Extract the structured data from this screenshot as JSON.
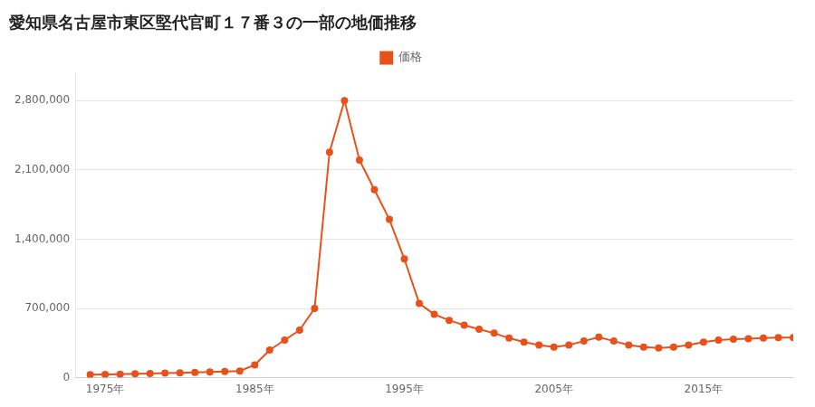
{
  "chart_data": {
    "type": "line",
    "title": "愛知県名古屋市東区堅代官町１７番３の一部の地価推移",
    "x": [
      1974,
      1975,
      1976,
      1977,
      1978,
      1979,
      1980,
      1981,
      1982,
      1983,
      1984,
      1985,
      1986,
      1987,
      1988,
      1989,
      1990,
      1991,
      1992,
      1993,
      1994,
      1995,
      1996,
      1997,
      1998,
      1999,
      2000,
      2001,
      2002,
      2003,
      2004,
      2005,
      2006,
      2007,
      2008,
      2009,
      2010,
      2011,
      2012,
      2013,
      2014,
      2015,
      2016,
      2017,
      2018,
      2019,
      2020,
      2021
    ],
    "series": [
      {
        "name": "価格",
        "color": "#e8521a",
        "marker": "circle",
        "values": [
          30000,
          33000,
          36000,
          39000,
          42000,
          46000,
          50000,
          54000,
          58000,
          62000,
          68000,
          130000,
          280000,
          380000,
          480000,
          700000,
          2280000,
          2800000,
          2200000,
          1900000,
          1600000,
          1200000,
          750000,
          640000,
          580000,
          530000,
          490000,
          450000,
          400000,
          360000,
          330000,
          310000,
          330000,
          370000,
          410000,
          370000,
          330000,
          310000,
          300000,
          310000,
          330000,
          360000,
          380000,
          390000,
          395000,
          400000,
          405000,
          405000
        ]
      }
    ],
    "xlim": [
      1973,
      2021
    ],
    "xticks": [
      {
        "value": 1975,
        "label": "1975年"
      },
      {
        "value": 1985,
        "label": "1985年"
      },
      {
        "value": 1995,
        "label": "1995年"
      },
      {
        "value": 2005,
        "label": "2005年"
      },
      {
        "value": 2015,
        "label": "2015年"
      }
    ],
    "ylim": [
      0,
      3080000
    ],
    "yticks": [
      0,
      {
        "value": 700000,
        "label": "700,000"
      },
      {
        "value": 1400000,
        "label": "1,400,000"
      },
      {
        "value": 2100000,
        "label": "2,100,000"
      },
      {
        "value": 2800000,
        "label": "2,800,000"
      }
    ],
    "grid": "y",
    "legend": "top"
  }
}
